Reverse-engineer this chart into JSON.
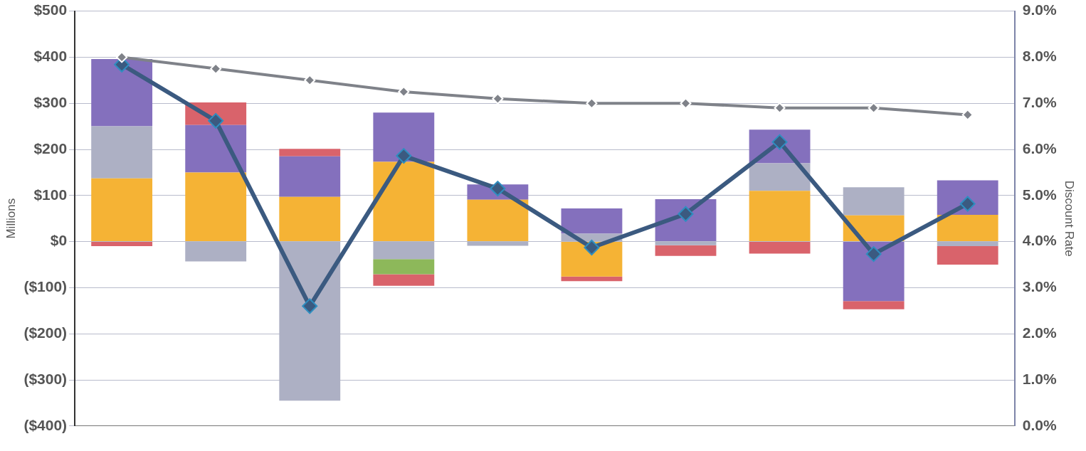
{
  "chart_data": {
    "type": "bar",
    "stacked": true,
    "ylabel": "Millions",
    "y2label": "Discount Rate",
    "categories": [
      null,
      null,
      null,
      null,
      null,
      null,
      null,
      null,
      null,
      null
    ],
    "series": [
      {
        "color": "#f5b335",
        "values": [
          137,
          150,
          97,
          173,
          91,
          -76,
          0,
          110,
          57,
          58
        ]
      },
      {
        "color": "#adb0c4",
        "values": [
          113,
          -43,
          -345,
          -38,
          -9,
          17,
          -8,
          60,
          61,
          -10
        ]
      },
      {
        "color": "#8db85a",
        "values": [
          0,
          0,
          0,
          -33,
          0,
          0,
          0,
          0,
          0,
          0
        ]
      },
      {
        "color": "#8470bd",
        "values": [
          146,
          103,
          88,
          107,
          33,
          55,
          92,
          73,
          -129,
          75
        ]
      },
      {
        "color": "#d9636b",
        "values": [
          -10,
          49,
          16,
          -25,
          0,
          -10,
          -23,
          -26,
          -18,
          -40
        ]
      },
      {
        "type": "line",
        "color": "#3b5a80",
        "values": [
          384,
          262,
          -140,
          186,
          115,
          -13,
          60,
          216,
          -27,
          82
        ]
      },
      {
        "type": "line",
        "axis": "y2",
        "color": "#7f8289",
        "values": [
          8.0,
          7.75,
          7.5,
          7.25,
          7.1,
          7.0,
          7.0,
          6.9,
          6.9,
          6.75
        ]
      }
    ],
    "ylim": [
      -400,
      500
    ],
    "yticks": [
      {
        "value": -400,
        "label": "($400)"
      },
      {
        "value": -300,
        "label": "($300)"
      },
      {
        "value": -200,
        "label": "($200)"
      },
      {
        "value": -100,
        "label": "($100)"
      },
      {
        "value": 0,
        "label": "$0"
      },
      {
        "value": 100,
        "label": "$100"
      },
      {
        "value": 200,
        "label": "$200"
      },
      {
        "value": 300,
        "label": "$300"
      },
      {
        "value": 400,
        "label": "$400"
      },
      {
        "value": 500,
        "label": "$500"
      }
    ],
    "y2lim": [
      0,
      9
    ],
    "y2ticks": [
      {
        "value": 0,
        "label": "0.0%"
      },
      {
        "value": 1,
        "label": "1.0%"
      },
      {
        "value": 2,
        "label": "2.0%"
      },
      {
        "value": 3,
        "label": "3.0%"
      },
      {
        "value": 4,
        "label": "4.0%"
      },
      {
        "value": 5,
        "label": "5.0%"
      },
      {
        "value": 6,
        "label": "6.0%"
      },
      {
        "value": 7,
        "label": "7.0%"
      },
      {
        "value": 8,
        "label": "8.0%"
      },
      {
        "value": 9,
        "label": "9.0%"
      }
    ],
    "grid": "y",
    "legend": false,
    "marker": "diamond",
    "line_style": "solid"
  }
}
